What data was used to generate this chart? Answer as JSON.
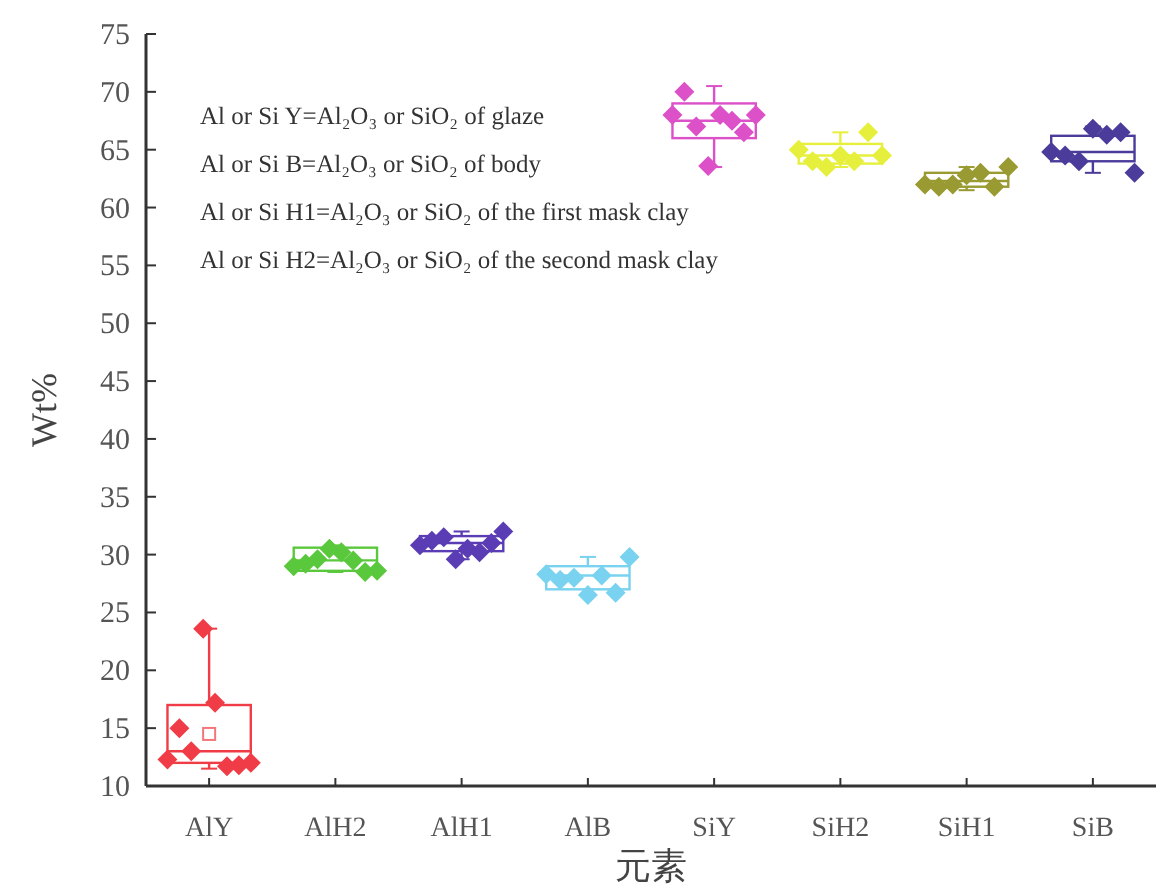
{
  "chart_data": {
    "type": "box",
    "xlabel": "元素",
    "ylabel": "Wt%",
    "categories": [
      "AlY",
      "AlH2",
      "AlH1",
      "AlB",
      "SiY",
      "SiH2",
      "SiH1",
      "SiB"
    ],
    "ylim": [
      10,
      75
    ],
    "yticks": [
      10,
      15,
      20,
      25,
      30,
      35,
      40,
      45,
      50,
      55,
      60,
      65,
      70,
      75
    ],
    "grid": false,
    "marker": "diamond",
    "annotations": [
      "Al or Si Y=Al₂O₃ or SiO₂ of glaze",
      "Al or Si B=Al₂O₃ or SiO₂ of body",
      "Al or Si H1=Al₂O₃ or SiO₂ of the first mask clay",
      "Al or Si H2=Al₂O₃ or SiO₂ of the second mask clay"
    ],
    "colors": [
      "#f03c46",
      "#5ac83c",
      "#5a3cb4",
      "#78d2f0",
      "#dc50c8",
      "#e6f03c",
      "#9a9a32",
      "#4b3c9b"
    ],
    "boxes": [
      {
        "low": 11.5,
        "q1": 12,
        "median": 13,
        "q3": 17,
        "high": 23.6,
        "mean": 14.5
      },
      {
        "low": 28.5,
        "q1": 28.6,
        "median": 29.5,
        "q3": 30.6,
        "high": 30.8
      },
      {
        "low": 29.6,
        "q1": 30.3,
        "median": 31,
        "q3": 31.6,
        "high": 32
      },
      {
        "low": 26.5,
        "q1": 27,
        "median": 28.2,
        "q3": 29,
        "high": 29.8
      },
      {
        "low": 63.5,
        "q1": 66,
        "median": 67.5,
        "q3": 69,
        "high": 70.5
      },
      {
        "low": 63.5,
        "q1": 63.8,
        "median": 64.5,
        "q3": 65.5,
        "high": 66.5
      },
      {
        "low": 61.5,
        "q1": 61.8,
        "median": 62.3,
        "q3": 63,
        "high": 63.5
      },
      {
        "low": 63,
        "q1": 64,
        "median": 64.8,
        "q3": 66.2,
        "high": 67
      }
    ],
    "series": [
      {
        "type": "scatter",
        "color": "#f03c46",
        "x": [
          "AlY",
          "AlY",
          "AlY",
          "AlY",
          "AlY",
          "AlY",
          "AlY",
          "AlY"
        ],
        "values": [
          12.3,
          15,
          13,
          23.6,
          17.2,
          11.7,
          11.8,
          12
        ]
      },
      {
        "type": "scatter",
        "color": "#5ac83c",
        "x": [
          "AlH2",
          "AlH2",
          "AlH2",
          "AlH2",
          "AlH2",
          "AlH2",
          "AlH2",
          "AlH2"
        ],
        "values": [
          29,
          29.2,
          29.6,
          30.5,
          30.2,
          29.5,
          28.5,
          28.6
        ]
      },
      {
        "type": "scatter",
        "color": "#5a3cb4",
        "x": [
          "AlH1",
          "AlH1",
          "AlH1",
          "AlH1",
          "AlH1",
          "AlH1",
          "AlH1",
          "AlH1"
        ],
        "values": [
          30.8,
          31.2,
          31.5,
          29.6,
          30.5,
          30.2,
          31,
          32
        ]
      },
      {
        "type": "scatter",
        "color": "#78d2f0",
        "x": [
          "AlB",
          "AlB",
          "AlB",
          "AlB",
          "AlB",
          "AlB",
          "AlB"
        ],
        "values": [
          28.3,
          27.8,
          28,
          26.5,
          28.2,
          26.7,
          29.8
        ]
      },
      {
        "type": "scatter",
        "color": "#dc50c8",
        "x": [
          "SiY",
          "SiY",
          "SiY",
          "SiY",
          "SiY",
          "SiY",
          "SiY",
          "SiY"
        ],
        "values": [
          68,
          70,
          67,
          63.6,
          68,
          67.5,
          66.5,
          68
        ]
      },
      {
        "type": "scatter",
        "color": "#e6f03c",
        "x": [
          "SiH2",
          "SiH2",
          "SiH2",
          "SiH2",
          "SiH2",
          "SiH2",
          "SiH2"
        ],
        "values": [
          65,
          64,
          63.5,
          64.5,
          64,
          66.5,
          64.5
        ]
      },
      {
        "type": "scatter",
        "color": "#9a9a32",
        "x": [
          "SiH1",
          "SiH1",
          "SiH1",
          "SiH1",
          "SiH1",
          "SiH1",
          "SiH1"
        ],
        "values": [
          62,
          61.8,
          62,
          62.8,
          63,
          61.8,
          63.5
        ]
      },
      {
        "type": "scatter",
        "color": "#4b3c9b",
        "x": [
          "SiB",
          "SiB",
          "SiB",
          "SiB",
          "SiB",
          "SiB",
          "SiB"
        ],
        "values": [
          64.8,
          64.5,
          64,
          66.8,
          66.3,
          66.5,
          63
        ]
      }
    ]
  }
}
